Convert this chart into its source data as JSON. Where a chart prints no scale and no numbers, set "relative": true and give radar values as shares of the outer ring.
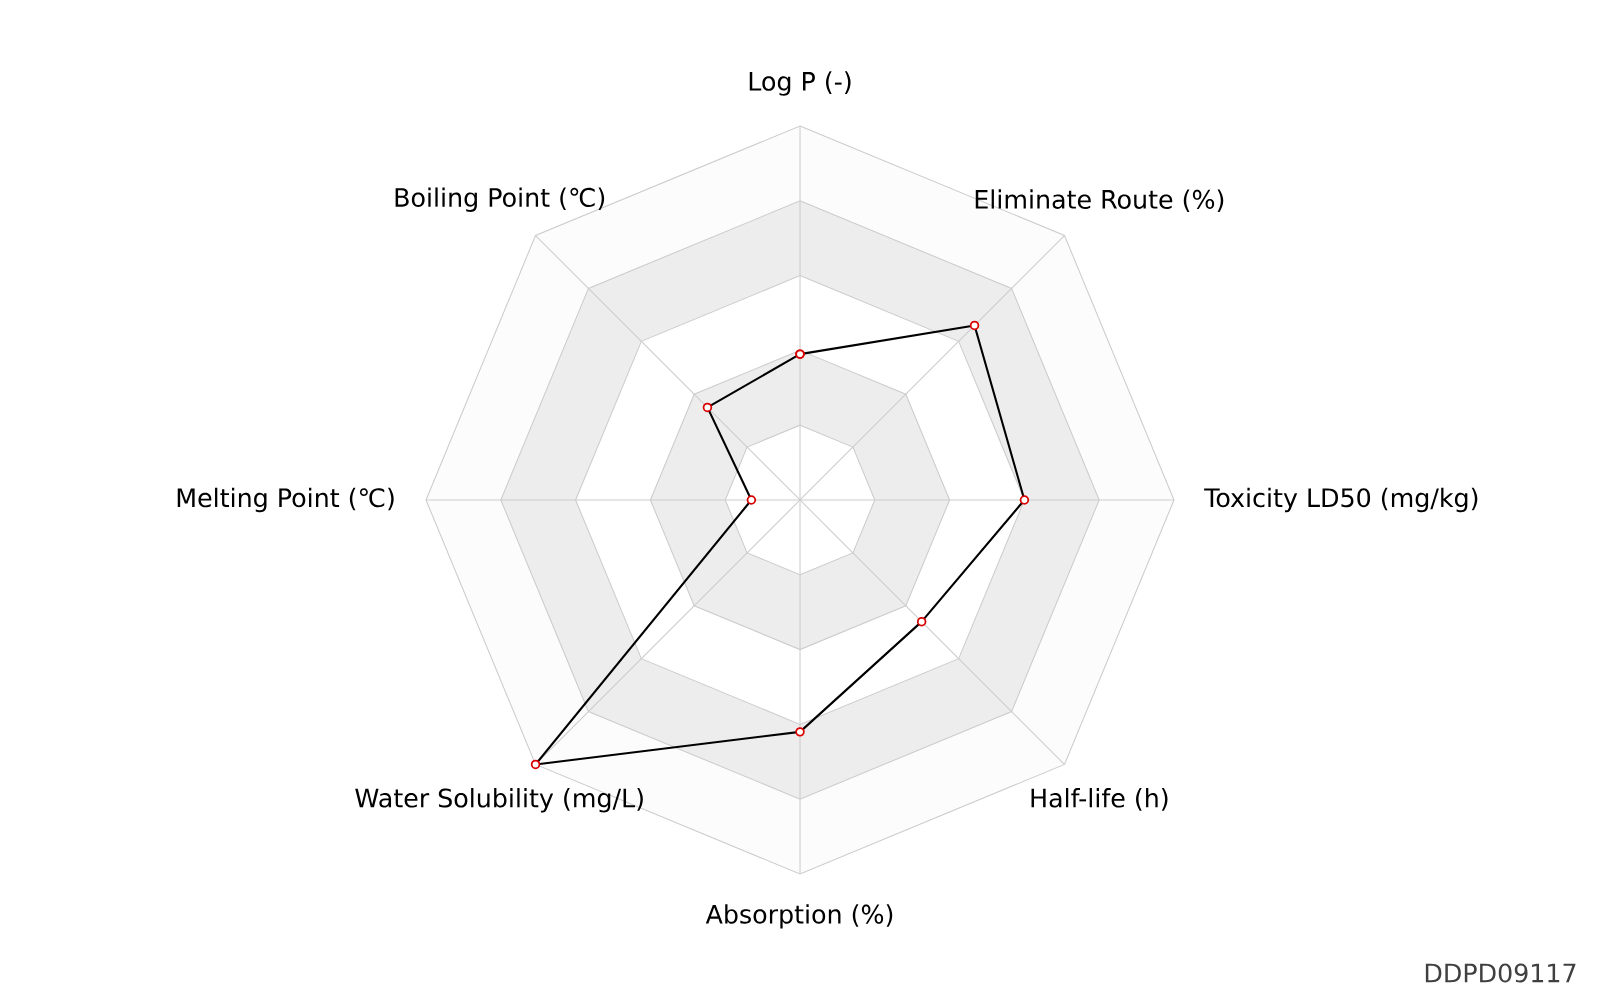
{
  "chart_data": {
    "type": "radar",
    "relative": true,
    "categories": [
      "Log P (-)",
      "Eliminate Route (%)",
      "Toxicity LD50 (mg/kg)",
      "Half-life (h)",
      "Absorption (%)",
      "Water Solubility (mg/L)",
      "Melting Point (℃)",
      "Boiling Point (℃)"
    ],
    "series": [
      {
        "color": "#000000",
        "values": [
          0.39,
          0.66,
          0.6,
          0.46,
          0.62,
          1.0,
          0.13,
          0.35
        ]
      }
    ],
    "marker": "circle",
    "annotations": [
      "DDPD09117"
    ]
  }
}
